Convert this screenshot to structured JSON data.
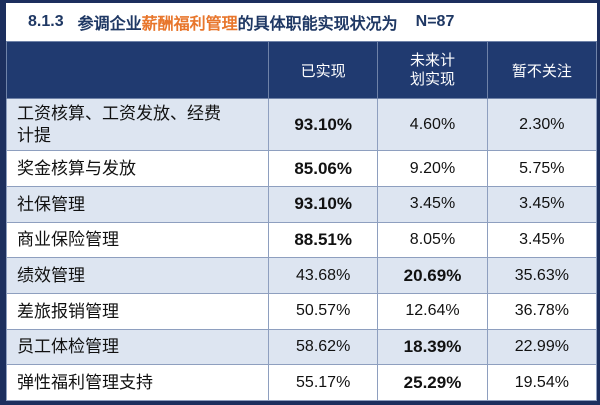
{
  "title": {
    "number": "8.1.3",
    "pre": "参调企业",
    "highlight": "薪酬福利管理",
    "post": "的具体职能实现状况为",
    "sample": "N=87"
  },
  "colors": {
    "header_navy": "#203a70",
    "title_navy": "#1f3864",
    "highlight_orange": "#e8762c",
    "row_alt_blue": "#dde5f1",
    "frame_navy": "#1c2f5e",
    "grid_line": "#8e9fbf"
  },
  "chart_data": {
    "type": "table",
    "title": "8.1.3 参调企业薪酬福利管理的具体职能实现状况为 N=87",
    "columns": [
      "已实现",
      "未来计划实现",
      "暂不关注"
    ],
    "rows": [
      {
        "label": "工资核算、工资发放、经费计提",
        "values": [
          "93.10%",
          "4.60%",
          "2.30%"
        ],
        "bold": [
          true,
          false,
          false
        ]
      },
      {
        "label": "奖金核算与发放",
        "values": [
          "85.06%",
          "9.20%",
          "5.75%"
        ],
        "bold": [
          true,
          false,
          false
        ]
      },
      {
        "label": "社保管理",
        "values": [
          "93.10%",
          "3.45%",
          "3.45%"
        ],
        "bold": [
          true,
          false,
          false
        ]
      },
      {
        "label": "商业保险管理",
        "values": [
          "88.51%",
          "8.05%",
          "3.45%"
        ],
        "bold": [
          true,
          false,
          false
        ]
      },
      {
        "label": "绩效管理",
        "values": [
          "43.68%",
          "20.69%",
          "35.63%"
        ],
        "bold": [
          false,
          true,
          false
        ]
      },
      {
        "label": "差旅报销管理",
        "values": [
          "50.57%",
          "12.64%",
          "36.78%"
        ],
        "bold": [
          false,
          false,
          false
        ]
      },
      {
        "label": "员工体检管理",
        "values": [
          "58.62%",
          "18.39%",
          "22.99%"
        ],
        "bold": [
          false,
          true,
          false
        ]
      },
      {
        "label": "弹性福利管理支持",
        "values": [
          "55.17%",
          "25.29%",
          "19.54%"
        ],
        "bold": [
          false,
          true,
          false
        ]
      }
    ]
  }
}
